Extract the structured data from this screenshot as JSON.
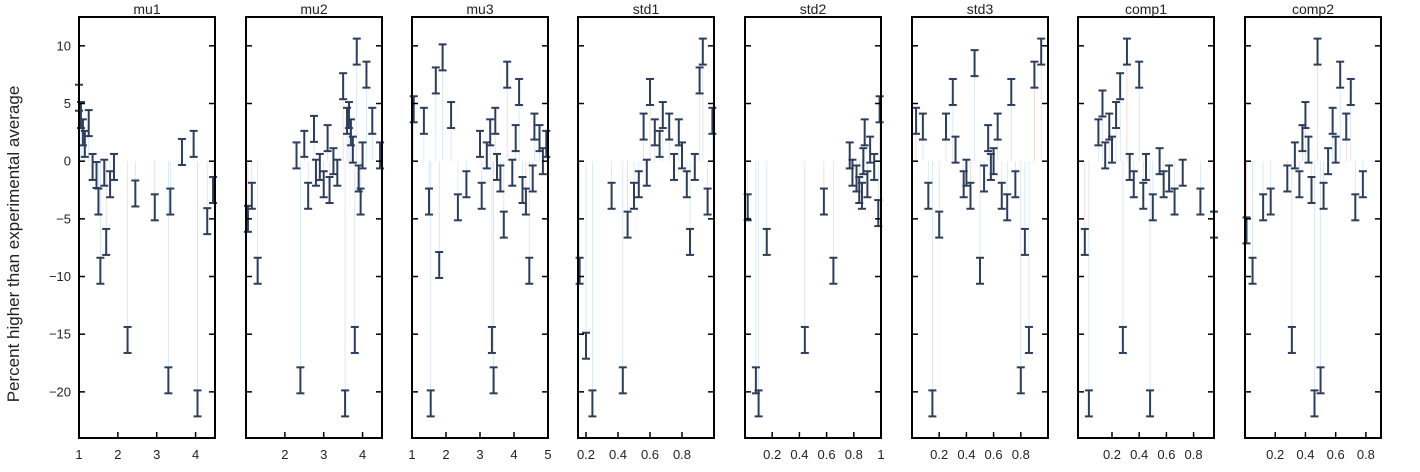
{
  "figure": {
    "ylabel": "Percent higher than experimental average"
  },
  "style": {
    "errorbar_color": "#2c3e5c",
    "trace_color": "#b7d3ea",
    "trace_color_alt": "#e9b8a8",
    "axis_color": "#000000",
    "background": "#ffffff"
  },
  "shared_y": {
    "range": [
      -24,
      12.5
    ],
    "ticks": [
      10,
      5,
      0,
      -5,
      -10,
      -15,
      -20
    ],
    "tick_labels": [
      "10",
      "5",
      "0",
      "−5",
      "−10",
      "−15",
      "−20"
    ]
  },
  "chart_data": [
    {
      "type": "scatter",
      "title": "mu1",
      "xlim": [
        1,
        4.5
      ],
      "xticks": [
        1,
        2,
        3,
        4
      ],
      "xtick_labels": [
        "1",
        "2",
        "3",
        "4"
      ],
      "points": [
        [
          1,
          5.5
        ],
        [
          1.05,
          4
        ],
        [
          1.1,
          2.5
        ],
        [
          1.15,
          1.5
        ],
        [
          1.25,
          3.3
        ],
        [
          1.35,
          -0.5
        ],
        [
          1.45,
          -1.2
        ],
        [
          1.5,
          -3.5
        ],
        [
          1.55,
          -9.5
        ],
        [
          1.65,
          -1
        ],
        [
          1.7,
          -7
        ],
        [
          1.8,
          -2
        ],
        [
          1.9,
          -0.5
        ],
        [
          2.25,
          -15.5
        ],
        [
          2.45,
          -2.8
        ],
        [
          2.95,
          -4
        ],
        [
          3.3,
          -19
        ],
        [
          3.35,
          -3.5
        ],
        [
          3.65,
          0.8
        ],
        [
          3.95,
          1.5
        ],
        [
          4.05,
          -21
        ],
        [
          4.3,
          -5.2
        ],
        [
          4.45,
          -2.5
        ]
      ]
    },
    {
      "type": "scatter",
      "title": "mu2",
      "xlim": [
        1,
        4.5
      ],
      "xticks": [
        2,
        3,
        4
      ],
      "xtick_labels": [
        "2",
        "3",
        "4"
      ],
      "points": [
        [
          1.05,
          -5
        ],
        [
          1.15,
          -3
        ],
        [
          1.3,
          -9.5
        ],
        [
          2.3,
          0.5
        ],
        [
          2.4,
          -19
        ],
        [
          2.5,
          1.5
        ],
        [
          2.6,
          -3
        ],
        [
          2.75,
          2.8
        ],
        [
          2.8,
          -1
        ],
        [
          2.9,
          -0.5
        ],
        [
          3.0,
          -2
        ],
        [
          3.1,
          2
        ],
        [
          3.15,
          -2.5
        ],
        [
          3.25,
          0
        ],
        [
          3.35,
          -1
        ],
        [
          3.5,
          6.5
        ],
        [
          3.55,
          -21
        ],
        [
          3.6,
          3.5
        ],
        [
          3.65,
          4
        ],
        [
          3.7,
          2.5
        ],
        [
          3.75,
          1
        ],
        [
          3.8,
          -15.5
        ],
        [
          3.85,
          9.5
        ],
        [
          3.9,
          -1.5
        ],
        [
          3.95,
          -3.5
        ],
        [
          4.0,
          0.5
        ],
        [
          4.1,
          7.5
        ],
        [
          4.25,
          3.5
        ],
        [
          4.45,
          0.5
        ]
      ]
    },
    {
      "type": "scatter",
      "title": "mu3",
      "xlim": [
        1,
        5
      ],
      "xticks": [
        1,
        2,
        3,
        4,
        5
      ],
      "xtick_labels": [
        "1",
        "2",
        "3",
        "4",
        "5"
      ],
      "points": [
        [
          1.05,
          4.5
        ],
        [
          1.35,
          3.5
        ],
        [
          1.5,
          -3.5
        ],
        [
          1.55,
          -21
        ],
        [
          1.7,
          7
        ],
        [
          1.8,
          -9
        ],
        [
          1.9,
          9
        ],
        [
          2.15,
          4
        ],
        [
          2.35,
          -4
        ],
        [
          2.6,
          -2
        ],
        [
          3.0,
          1.5
        ],
        [
          3.05,
          -3
        ],
        [
          3.2,
          0.5
        ],
        [
          3.3,
          2.5
        ],
        [
          3.35,
          -15.5
        ],
        [
          3.4,
          -19
        ],
        [
          3.45,
          3.5
        ],
        [
          3.5,
          -0.5
        ],
        [
          3.6,
          -1.5
        ],
        [
          3.7,
          -5.5
        ],
        [
          3.8,
          7.5
        ],
        [
          3.95,
          -1
        ],
        [
          4.05,
          2
        ],
        [
          4.15,
          6
        ],
        [
          4.25,
          -2.5
        ],
        [
          4.35,
          -3.5
        ],
        [
          4.45,
          -9.5
        ],
        [
          4.55,
          -1.5
        ],
        [
          4.6,
          3
        ],
        [
          4.75,
          2
        ],
        [
          4.85,
          0
        ],
        [
          4.95,
          1.5
        ]
      ]
    },
    {
      "type": "scatter",
      "title": "std1",
      "xlim": [
        0.15,
        1.0
      ],
      "xticks": [
        0.2,
        0.4,
        0.6,
        0.8
      ],
      "xtick_labels": [
        "0.2",
        "0.4",
        "0.6",
        "0.8"
      ],
      "points": [
        [
          0.16,
          -9.5
        ],
        [
          0.2,
          -16
        ],
        [
          0.24,
          -21
        ],
        [
          0.36,
          -3
        ],
        [
          0.43,
          -19
        ],
        [
          0.46,
          -5.5
        ],
        [
          0.5,
          -3
        ],
        [
          0.53,
          -2
        ],
        [
          0.56,
          3
        ],
        [
          0.58,
          -1
        ],
        [
          0.6,
          6
        ],
        [
          0.63,
          2.5
        ],
        [
          0.66,
          1.5
        ],
        [
          0.68,
          4
        ],
        [
          0.72,
          3
        ],
        [
          0.75,
          -0.5
        ],
        [
          0.78,
          2.5
        ],
        [
          0.8,
          0.5
        ],
        [
          0.83,
          -2
        ],
        [
          0.85,
          -7
        ],
        [
          0.88,
          -0.5
        ],
        [
          0.91,
          7
        ],
        [
          0.93,
          9.5
        ],
        [
          0.96,
          -3.5
        ],
        [
          0.99,
          3.5
        ]
      ]
    },
    {
      "type": "scatter",
      "title": "std2",
      "xlim": [
        0.0,
        1.0
      ],
      "xticks": [
        0.2,
        0.4,
        0.6,
        0.8,
        1
      ],
      "xtick_labels": [
        "0.2",
        "0.4",
        "0.6",
        "0.8",
        "1"
      ],
      "points": [
        [
          0.02,
          -4
        ],
        [
          0.08,
          -19
        ],
        [
          0.1,
          -21
        ],
        [
          0.16,
          -7
        ],
        [
          0.44,
          -15.5
        ],
        [
          0.58,
          -3.5
        ],
        [
          0.65,
          -9.5
        ],
        [
          0.77,
          0.5
        ],
        [
          0.79,
          -1
        ],
        [
          0.82,
          -1.5
        ],
        [
          0.84,
          -2.5
        ],
        [
          0.86,
          -3
        ],
        [
          0.87,
          0
        ],
        [
          0.88,
          2.5
        ],
        [
          0.9,
          -2
        ],
        [
          0.92,
          1
        ],
        [
          0.95,
          -0.5
        ],
        [
          0.98,
          -4.5
        ],
        [
          0.99,
          4.5
        ]
      ]
    },
    {
      "type": "scatter",
      "title": "std3",
      "xlim": [
        0.0,
        1.0
      ],
      "xticks": [
        0.2,
        0.4,
        0.6,
        0.8
      ],
      "xtick_labels": [
        "0.2",
        "0.4",
        "0.6",
        "0.8"
      ],
      "points": [
        [
          0.03,
          3.5
        ],
        [
          0.08,
          3
        ],
        [
          0.12,
          -3
        ],
        [
          0.15,
          -21
        ],
        [
          0.2,
          -5.5
        ],
        [
          0.25,
          3
        ],
        [
          0.3,
          6
        ],
        [
          0.32,
          1
        ],
        [
          0.38,
          -2
        ],
        [
          0.4,
          -1
        ],
        [
          0.43,
          -3
        ],
        [
          0.46,
          8.5
        ],
        [
          0.5,
          -9.5
        ],
        [
          0.53,
          -1.5
        ],
        [
          0.56,
          2
        ],
        [
          0.58,
          -0.5
        ],
        [
          0.6,
          0
        ],
        [
          0.63,
          3
        ],
        [
          0.66,
          -3
        ],
        [
          0.7,
          -4
        ],
        [
          0.73,
          6
        ],
        [
          0.76,
          -2
        ],
        [
          0.8,
          -19
        ],
        [
          0.83,
          -7
        ],
        [
          0.86,
          -15.5
        ],
        [
          0.9,
          7.5
        ],
        [
          0.95,
          9.5
        ]
      ]
    },
    {
      "type": "scatter",
      "title": "comp1",
      "xlim": [
        -0.05,
        0.95
      ],
      "xticks": [
        0.2,
        0.4,
        0.6,
        0.8
      ],
      "xtick_labels": [
        "0.2",
        "0.4",
        "0.6",
        "0.8"
      ],
      "points": [
        [
          0.0,
          -7
        ],
        [
          0.03,
          -21
        ],
        [
          0.1,
          2.5
        ],
        [
          0.13,
          5
        ],
        [
          0.15,
          0.5
        ],
        [
          0.18,
          3
        ],
        [
          0.2,
          1
        ],
        [
          0.23,
          4
        ],
        [
          0.26,
          6.5
        ],
        [
          0.28,
          -15.5
        ],
        [
          0.31,
          9.5
        ],
        [
          0.33,
          -0.5
        ],
        [
          0.36,
          -2
        ],
        [
          0.4,
          7.5
        ],
        [
          0.43,
          -3
        ],
        [
          0.45,
          -0.5
        ],
        [
          0.48,
          -21
        ],
        [
          0.5,
          -4
        ],
        [
          0.55,
          0
        ],
        [
          0.58,
          -2
        ],
        [
          0.62,
          -1.5
        ],
        [
          0.66,
          -3.5
        ],
        [
          0.72,
          -1
        ],
        [
          0.85,
          -3.5
        ],
        [
          0.95,
          -5.5
        ]
      ]
    },
    {
      "type": "scatter",
      "title": "comp2",
      "xlim": [
        0.0,
        0.9
      ],
      "xticks": [
        0.2,
        0.4,
        0.6,
        0.8
      ],
      "xtick_labels": [
        "0.2",
        "0.4",
        "0.6",
        "0.8"
      ],
      "points": [
        [
          0.01,
          -6
        ],
        [
          0.05,
          -9.5
        ],
        [
          0.12,
          -4
        ],
        [
          0.17,
          -3.5
        ],
        [
          0.28,
          -1.5
        ],
        [
          0.31,
          -15.5
        ],
        [
          0.33,
          0.5
        ],
        [
          0.36,
          -2
        ],
        [
          0.38,
          2
        ],
        [
          0.4,
          4
        ],
        [
          0.42,
          1
        ],
        [
          0.44,
          -2.5
        ],
        [
          0.46,
          -21
        ],
        [
          0.48,
          9.5
        ],
        [
          0.5,
          -19
        ],
        [
          0.52,
          -3
        ],
        [
          0.55,
          0
        ],
        [
          0.58,
          3.5
        ],
        [
          0.6,
          1
        ],
        [
          0.63,
          7.5
        ],
        [
          0.67,
          3
        ],
        [
          0.7,
          6
        ],
        [
          0.73,
          -4
        ],
        [
          0.78,
          -2
        ]
      ]
    }
  ]
}
